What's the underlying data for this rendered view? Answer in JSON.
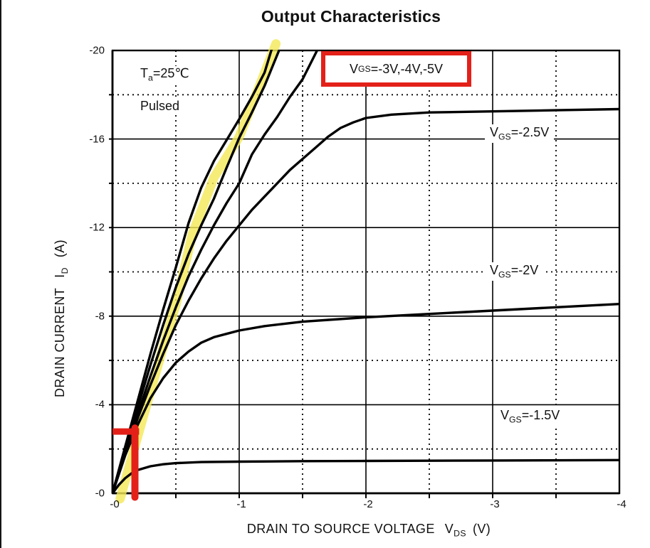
{
  "page": {
    "title": "Output Characteristics"
  },
  "conditions": {
    "temperature": {
      "prefix": "T",
      "sub": "a",
      "rest": "=25℃"
    },
    "mode": "Pulsed"
  },
  "axes": {
    "x": {
      "label": "DRAIN TO SOURCE VOLTAGE",
      "symbol": "V",
      "symbol_sub": "DS",
      "unit": "(V)",
      "tick_labels": [
        "-0",
        "-1",
        "-2",
        "-3",
        "-4"
      ],
      "tick_values": [
        0,
        -1,
        -2,
        -3,
        -4
      ]
    },
    "y": {
      "label": "DRAIN CURRENT",
      "symbol": "I",
      "symbol_sub": "D",
      "unit": "(A)",
      "tick_labels": [
        "-20",
        "-16",
        "-12",
        "-8",
        "-4",
        "-0"
      ],
      "tick_values": [
        -20,
        -16,
        -12,
        -8,
        -4,
        0
      ]
    }
  },
  "curve_labels": {
    "vgs_345": {
      "prefix": "V",
      "sub": "GS",
      "rest": "=-3V,-4V,-5V"
    },
    "vgs_25": {
      "prefix": "V",
      "sub": "GS",
      "rest": "=-2.5V"
    },
    "vgs_20": {
      "prefix": "V",
      "sub": "GS",
      "rest": "=-2V"
    },
    "vgs_15": {
      "prefix": "V",
      "sub": "GS",
      "rest": "=-1.5V"
    }
  },
  "colors": {
    "curve": "#000000",
    "annotation_red": "#e32119",
    "highlight_yellow": "rgba(243,232,85,0.8)"
  },
  "chart_data": {
    "type": "line",
    "title": "Output Characteristics",
    "xlabel": "DRAIN TO SOURCE VOLTAGE VDS (V)",
    "ylabel": "DRAIN CURRENT ID (A)",
    "xlim": [
      0,
      -4
    ],
    "ylim": [
      0,
      -20
    ],
    "x_major_grid": [
      -1,
      -2,
      -3
    ],
    "x_minor_grid": [
      -0.5,
      -1.5,
      -2.5,
      -3.5
    ],
    "y_major_grid": [
      -4,
      -8,
      -12,
      -16
    ],
    "y_minor_grid": [
      -2,
      -6,
      -10,
      -14,
      -18
    ],
    "grid": "major solid, minor dotted",
    "legend_position": "inline labels on curves",
    "series": [
      {
        "name": "VGS = -5 V",
        "points": [
          [
            0,
            0
          ],
          [
            -0.1,
            -2.1
          ],
          [
            -0.2,
            -4.2
          ],
          [
            -0.3,
            -6.3
          ],
          [
            -0.4,
            -8.3
          ],
          [
            -0.5,
            -10.2
          ],
          [
            -0.6,
            -12.2
          ],
          [
            -0.7,
            -13.8
          ],
          [
            -0.8,
            -15.0
          ],
          [
            -0.9,
            -15.95
          ],
          [
            -1.0,
            -16.9
          ],
          [
            -1.1,
            -17.9
          ],
          [
            -1.2,
            -19.0
          ],
          [
            -1.28,
            -20.5
          ]
        ]
      },
      {
        "name": "VGS = -4 V",
        "points": [
          [
            0,
            0
          ],
          [
            -0.1,
            -1.95
          ],
          [
            -0.2,
            -3.9
          ],
          [
            -0.3,
            -5.8
          ],
          [
            -0.4,
            -7.6
          ],
          [
            -0.5,
            -9.3
          ],
          [
            -0.6,
            -10.8
          ],
          [
            -0.7,
            -12.1
          ],
          [
            -0.8,
            -13.3
          ],
          [
            -0.9,
            -14.7
          ],
          [
            -1.0,
            -16.05
          ],
          [
            -1.1,
            -17.2
          ],
          [
            -1.2,
            -18.4
          ],
          [
            -1.35,
            -20.5
          ]
        ]
      },
      {
        "name": "VGS = -3 V",
        "points": [
          [
            0,
            0
          ],
          [
            -0.1,
            -1.85
          ],
          [
            -0.2,
            -3.6
          ],
          [
            -0.3,
            -5.3
          ],
          [
            -0.4,
            -6.9
          ],
          [
            -0.5,
            -8.4
          ],
          [
            -0.6,
            -9.8
          ],
          [
            -0.7,
            -11.0
          ],
          [
            -0.8,
            -12.1
          ],
          [
            -0.9,
            -13.1
          ],
          [
            -1.0,
            -14.0
          ],
          [
            -1.1,
            -15.3
          ],
          [
            -1.2,
            -16.2
          ],
          [
            -1.3,
            -17.0
          ],
          [
            -1.4,
            -17.9
          ],
          [
            -1.5,
            -18.7
          ],
          [
            -1.65,
            -20.4
          ]
        ]
      },
      {
        "name": "VGS = -2.5 V",
        "points": [
          [
            0,
            0
          ],
          [
            -0.1,
            -1.8
          ],
          [
            -0.2,
            -3.4
          ],
          [
            -0.3,
            -4.9
          ],
          [
            -0.4,
            -6.3
          ],
          [
            -0.5,
            -7.6
          ],
          [
            -0.6,
            -8.7
          ],
          [
            -0.7,
            -9.7
          ],
          [
            -0.8,
            -10.6
          ],
          [
            -0.9,
            -11.4
          ],
          [
            -1.0,
            -12.1
          ],
          [
            -1.1,
            -12.8
          ],
          [
            -1.2,
            -13.4
          ],
          [
            -1.3,
            -14.0
          ],
          [
            -1.4,
            -14.6
          ],
          [
            -1.5,
            -15.1
          ],
          [
            -1.6,
            -15.6
          ],
          [
            -1.7,
            -16.1
          ],
          [
            -1.8,
            -16.5
          ],
          [
            -1.9,
            -16.75
          ],
          [
            -2.0,
            -16.95
          ],
          [
            -2.2,
            -17.1
          ],
          [
            -2.5,
            -17.2
          ],
          [
            -3.0,
            -17.25
          ],
          [
            -3.5,
            -17.3
          ],
          [
            -4.0,
            -17.35
          ]
        ]
      },
      {
        "name": "VGS = -2 V",
        "points": [
          [
            0,
            0
          ],
          [
            -0.1,
            -1.7
          ],
          [
            -0.2,
            -3.1
          ],
          [
            -0.3,
            -4.3
          ],
          [
            -0.4,
            -5.2
          ],
          [
            -0.5,
            -5.9
          ],
          [
            -0.6,
            -6.4
          ],
          [
            -0.7,
            -6.8
          ],
          [
            -0.8,
            -7.05
          ],
          [
            -0.9,
            -7.2
          ],
          [
            -1.0,
            -7.35
          ],
          [
            -1.2,
            -7.55
          ],
          [
            -1.5,
            -7.75
          ],
          [
            -2.0,
            -7.95
          ],
          [
            -2.5,
            -8.1
          ],
          [
            -3.0,
            -8.25
          ],
          [
            -3.5,
            -8.4
          ],
          [
            -4.0,
            -8.55
          ]
        ]
      },
      {
        "name": "VGS = -1.5 V",
        "points": [
          [
            0,
            0
          ],
          [
            -0.05,
            -0.38
          ],
          [
            -0.1,
            -0.68
          ],
          [
            -0.15,
            -0.9
          ],
          [
            -0.2,
            -1.05
          ],
          [
            -0.3,
            -1.22
          ],
          [
            -0.4,
            -1.31
          ],
          [
            -0.5,
            -1.36
          ],
          [
            -0.7,
            -1.41
          ],
          [
            -1.0,
            -1.43
          ],
          [
            -1.5,
            -1.45
          ],
          [
            -2.0,
            -1.46
          ],
          [
            -2.5,
            -1.47
          ],
          [
            -3.0,
            -1.48
          ],
          [
            -4.0,
            -1.5
          ]
        ]
      }
    ]
  },
  "annotations": {
    "highlighter_stroke": {
      "description": "hand-drawn yellow highlighter along the VGS=-4/-5 linear-region curves",
      "points": [
        [
          -0.06,
          0.25
        ],
        [
          -0.22,
          -3.0
        ],
        [
          -0.38,
          -6.2
        ],
        [
          -0.5,
          -8.5
        ],
        [
          -0.63,
          -11.7
        ],
        [
          -0.8,
          -14.25
        ],
        [
          -1.0,
          -16.1
        ],
        [
          -1.16,
          -18.4
        ],
        [
          -1.29,
          -20.3
        ]
      ]
    },
    "red_bracket": {
      "description": "red corner mark near origin at about VDS=-0.18 V, ID=-2.9 A",
      "h_i": -2.79,
      "h_v0": -0.001,
      "h_v1": -0.21,
      "v_v": -0.177,
      "v_i0": -2.95,
      "v_i1": 0.18
    }
  }
}
